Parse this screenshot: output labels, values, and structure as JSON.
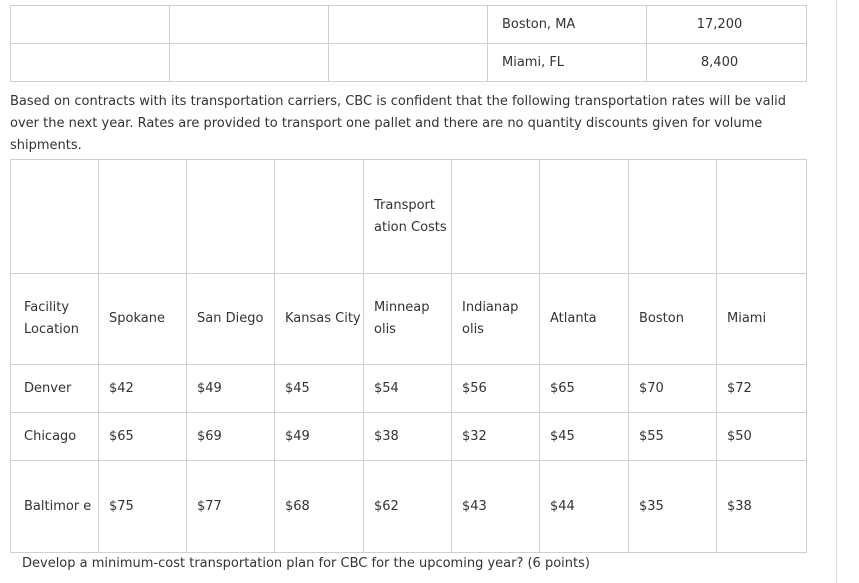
{
  "demand_table": {
    "rows": [
      {
        "city": "Boston, MA",
        "value": "17,200"
      },
      {
        "city": "Miami, FL",
        "value": "8,400"
      }
    ]
  },
  "intro_text": "Based on contracts with its transportation carriers, CBC is confident that the following transportation rates will be valid over the next year. Rates are provided to transport one pallet and there are no quantity discounts given for volume shipments.",
  "rates_table": {
    "caption": "Transport ation Costs",
    "corner_header": "Facility Location",
    "columns": [
      "Spokane",
      "San Diego",
      "Kansas City",
      "Minneap olis",
      "Indianap olis",
      "Atlanta",
      "Boston",
      "Miami"
    ],
    "rows": [
      {
        "facility": "Denver",
        "rates": [
          "$42",
          "$49",
          "$45",
          "$54",
          "$56",
          "$65",
          "$70",
          "$72"
        ]
      },
      {
        "facility": "Chicago",
        "rates": [
          "$65",
          "$69",
          "$49",
          "$38",
          "$32",
          "$45",
          "$55",
          "$50"
        ]
      },
      {
        "facility": "Baltimor e",
        "rates": [
          "$75",
          "$77",
          "$68",
          "$62",
          "$43",
          "$44",
          "$35",
          "$38"
        ]
      }
    ]
  },
  "question": "Develop a minimum-cost transportation plan for CBC for the upcoming year? (6 points)"
}
